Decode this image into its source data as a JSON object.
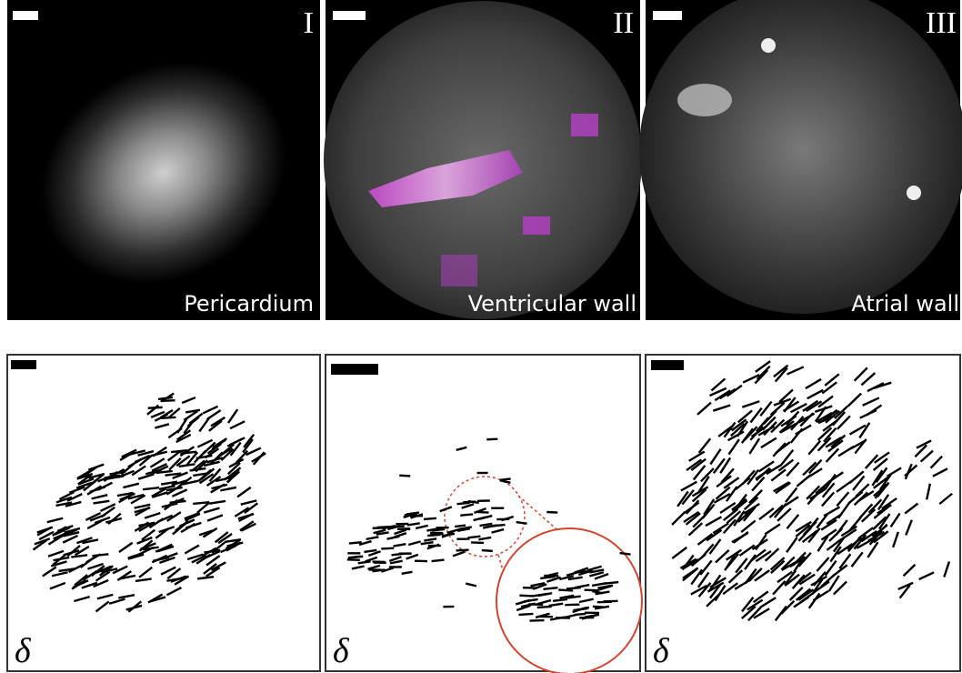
{
  "top_panels": [
    {
      "numeral": "I",
      "label": "Pericardium"
    },
    {
      "numeral": "II",
      "label": "Ventricular wall"
    },
    {
      "numeral": "III",
      "label": "Atrial wall"
    }
  ],
  "bottom_panels": [
    {
      "symbol": "δ"
    },
    {
      "symbol": "δ"
    },
    {
      "symbol": "δ"
    }
  ]
}
